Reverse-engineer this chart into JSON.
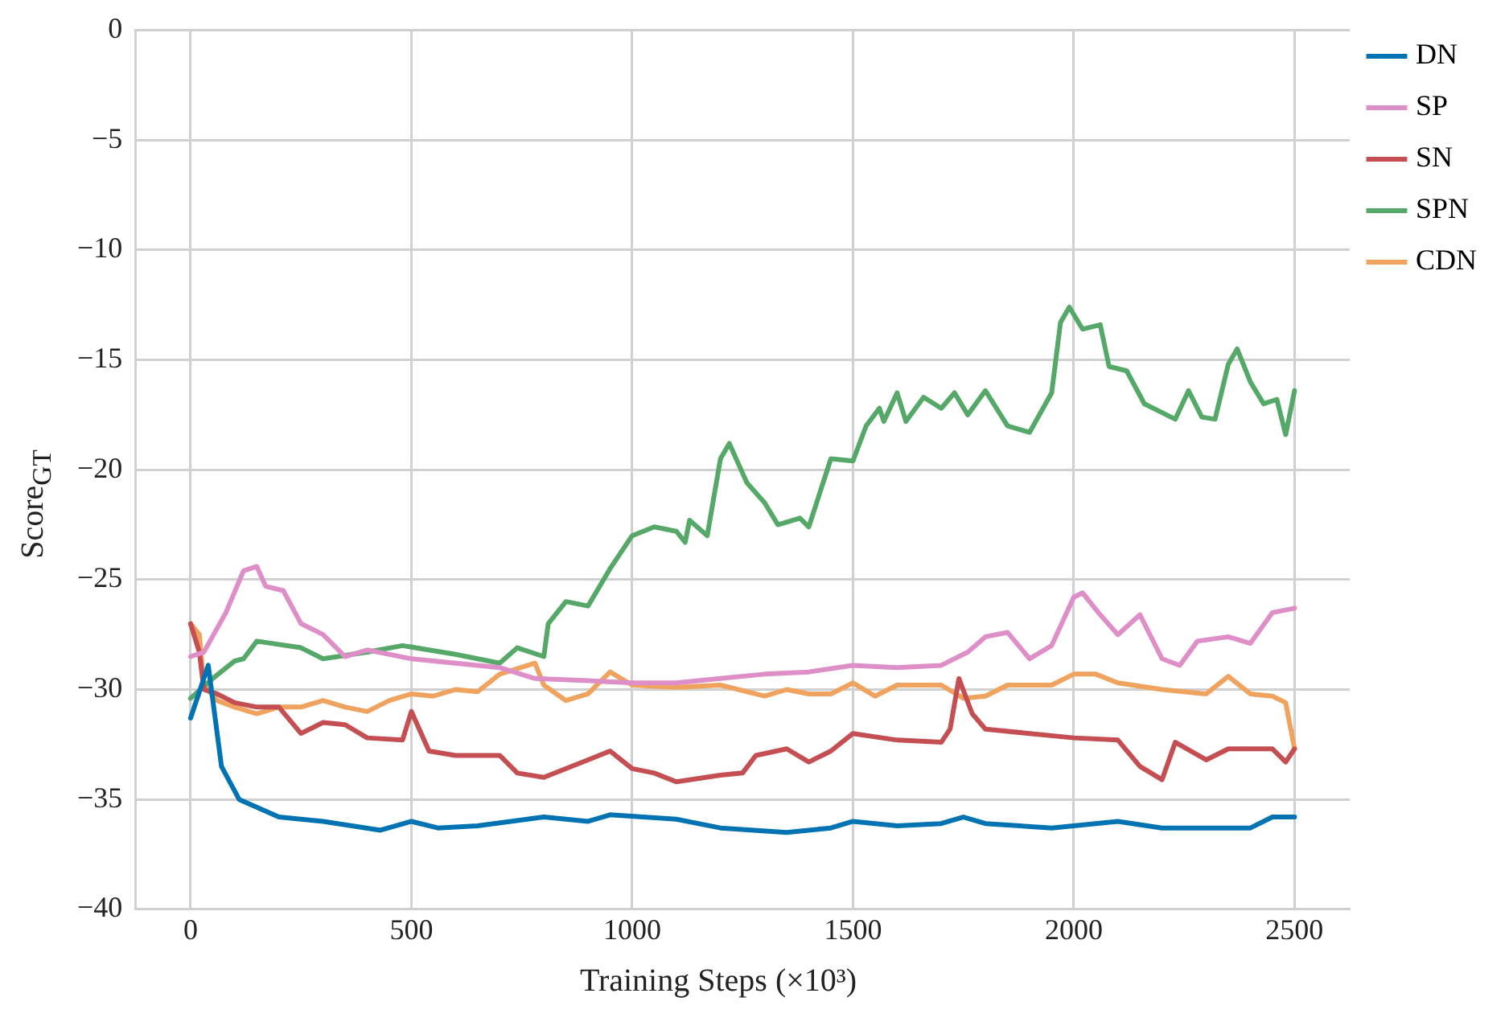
{
  "chart_data": {
    "type": "line",
    "xlabel": "Training Steps (×10³)",
    "ylabel": "Score$_{GT}$",
    "xlim": [
      -125,
      2625
    ],
    "xticks": [
      0,
      500,
      1000,
      1500,
      2000,
      2500
    ],
    "ylim": [
      -40,
      0
    ],
    "yticks": [
      {
        "value": -40,
        "label": "−40"
      },
      {
        "value": -35,
        "label": "−35"
      },
      {
        "value": -30,
        "label": "−30"
      },
      {
        "value": -25,
        "label": "−25"
      },
      {
        "value": -20,
        "label": "−20"
      },
      {
        "value": -15,
        "label": "−15"
      },
      {
        "value": -10,
        "label": "−10"
      },
      {
        "value": -5,
        "label": "−5"
      },
      0
    ],
    "grid": true,
    "legend": "top right",
    "marker": "none",
    "line_style": "solid",
    "series": [
      {
        "name": "DN",
        "color": "#0173b2",
        "x": [
          0,
          40,
          70,
          110,
          200,
          300,
          430,
          500,
          560,
          650,
          800,
          900,
          950,
          1100,
          1200,
          1350,
          1450,
          1500,
          1600,
          1700,
          1750,
          1800,
          1950,
          2100,
          2200,
          2400,
          2450,
          2500
        ],
        "values": [
          -31.3,
          -28.9,
          -33.5,
          -35,
          -35.8,
          -36,
          -36.4,
          -36,
          -36.3,
          -36.2,
          -35.8,
          -36,
          -35.7,
          -35.9,
          -36.3,
          -36.5,
          -36.3,
          -36,
          -36.2,
          -36.1,
          -35.8,
          -36.1,
          -36.3,
          -36,
          -36.3,
          -36.3,
          -35.8,
          -35.8
        ]
      },
      {
        "name": "SP",
        "color": "#de8fc8",
        "x": [
          0,
          30,
          80,
          120,
          150,
          170,
          210,
          250,
          300,
          350,
          400,
          500,
          600,
          700,
          780,
          900,
          1000,
          1100,
          1200,
          1300,
          1400,
          1500,
          1600,
          1700,
          1760,
          1800,
          1850,
          1900,
          1950,
          2000,
          2020,
          2060,
          2100,
          2150,
          2200,
          2240,
          2280,
          2350,
          2400,
          2450,
          2500
        ],
        "values": [
          -28.5,
          -28.3,
          -26.5,
          -24.6,
          -24.4,
          -25.3,
          -25.5,
          -27,
          -27.5,
          -28.5,
          -28.2,
          -28.6,
          -28.8,
          -29,
          -29.5,
          -29.6,
          -29.7,
          -29.7,
          -29.5,
          -29.3,
          -29.2,
          -28.9,
          -29,
          -28.9,
          -28.3,
          -27.6,
          -27.4,
          -28.6,
          -28,
          -25.8,
          -25.6,
          -26.6,
          -27.5,
          -26.6,
          -28.6,
          -28.9,
          -27.8,
          -27.6,
          -27.9,
          -26.5,
          -26.3
        ]
      },
      {
        "name": "SN",
        "color": "#c44e52",
        "x": [
          0,
          20,
          30,
          60,
          100,
          150,
          200,
          250,
          300,
          350,
          400,
          480,
          500,
          540,
          600,
          700,
          740,
          800,
          900,
          950,
          1000,
          1050,
          1100,
          1200,
          1250,
          1280,
          1350,
          1400,
          1450,
          1500,
          1600,
          1700,
          1720,
          1740,
          1770,
          1800,
          1900,
          2000,
          2100,
          2150,
          2200,
          2230,
          2300,
          2350,
          2450,
          2480,
          2500
        ],
        "values": [
          -27,
          -28.3,
          -30,
          -30.2,
          -30.6,
          -30.8,
          -30.8,
          -32,
          -31.5,
          -31.6,
          -32.2,
          -32.3,
          -31,
          -32.8,
          -33,
          -33,
          -33.8,
          -34,
          -33.2,
          -32.8,
          -33.6,
          -33.8,
          -34.2,
          -33.9,
          -33.8,
          -33,
          -32.7,
          -33.3,
          -32.8,
          -32,
          -32.3,
          -32.4,
          -31.8,
          -29.5,
          -31.1,
          -31.8,
          -32,
          -32.2,
          -32.3,
          -33.5,
          -34.1,
          -32.4,
          -33.2,
          -32.7,
          -32.7,
          -33.3,
          -32.7
        ]
      },
      {
        "name": "SPN",
        "color": "#55a868",
        "x": [
          0,
          50,
          100,
          120,
          150,
          250,
          300,
          400,
          480,
          600,
          700,
          740,
          800,
          810,
          850,
          900,
          950,
          1000,
          1050,
          1100,
          1120,
          1130,
          1170,
          1200,
          1220,
          1260,
          1300,
          1330,
          1380,
          1400,
          1450,
          1500,
          1530,
          1560,
          1570,
          1600,
          1620,
          1660,
          1700,
          1730,
          1760,
          1800,
          1850,
          1900,
          1950,
          1970,
          1990,
          2020,
          2060,
          2080,
          2120,
          2160,
          2230,
          2260,
          2290,
          2320,
          2350,
          2370,
          2400,
          2430,
          2460,
          2480,
          2500
        ],
        "values": [
          -30.4,
          -29.5,
          -28.7,
          -28.6,
          -27.8,
          -28.1,
          -28.6,
          -28.3,
          -28,
          -28.4,
          -28.8,
          -28.1,
          -28.5,
          -27,
          -26,
          -26.2,
          -24.5,
          -23,
          -22.6,
          -22.8,
          -23.3,
          -22.3,
          -23,
          -19.5,
          -18.8,
          -20.6,
          -21.5,
          -22.5,
          -22.2,
          -22.6,
          -19.5,
          -19.6,
          -18,
          -17.2,
          -17.8,
          -16.5,
          -17.8,
          -16.7,
          -17.2,
          -16.5,
          -17.5,
          -16.4,
          -18,
          -18.3,
          -16.5,
          -13.3,
          -12.6,
          -13.6,
          -13.4,
          -15.3,
          -15.5,
          -17,
          -17.7,
          -16.4,
          -17.6,
          -17.7,
          -15.2,
          -14.5,
          -16,
          -17,
          -16.8,
          -18.4,
          -16.4
        ]
      },
      {
        "name": "CDN",
        "color": "#f0a35e",
        "x": [
          0,
          20,
          30,
          60,
          100,
          150,
          200,
          250,
          300,
          350,
          400,
          450,
          500,
          550,
          600,
          650,
          700,
          780,
          800,
          850,
          900,
          950,
          1000,
          1100,
          1200,
          1300,
          1350,
          1400,
          1450,
          1500,
          1550,
          1600,
          1700,
          1750,
          1800,
          1850,
          1950,
          2000,
          2050,
          2100,
          2200,
          2300,
          2350,
          2400,
          2450,
          2480,
          2500
        ],
        "values": [
          -27,
          -27.5,
          -29.8,
          -30.5,
          -30.8,
          -31.1,
          -30.8,
          -30.8,
          -30.5,
          -30.8,
          -31,
          -30.5,
          -30.2,
          -30.3,
          -30,
          -30.1,
          -29.3,
          -28.8,
          -29.8,
          -30.5,
          -30.2,
          -29.2,
          -29.8,
          -29.9,
          -29.8,
          -30.3,
          -30,
          -30.2,
          -30.2,
          -29.7,
          -30.3,
          -29.8,
          -29.8,
          -30.4,
          -30.3,
          -29.8,
          -29.8,
          -29.3,
          -29.3,
          -29.7,
          -30,
          -30.2,
          -29.4,
          -30.2,
          -30.3,
          -30.6,
          -32.7
        ]
      }
    ]
  }
}
